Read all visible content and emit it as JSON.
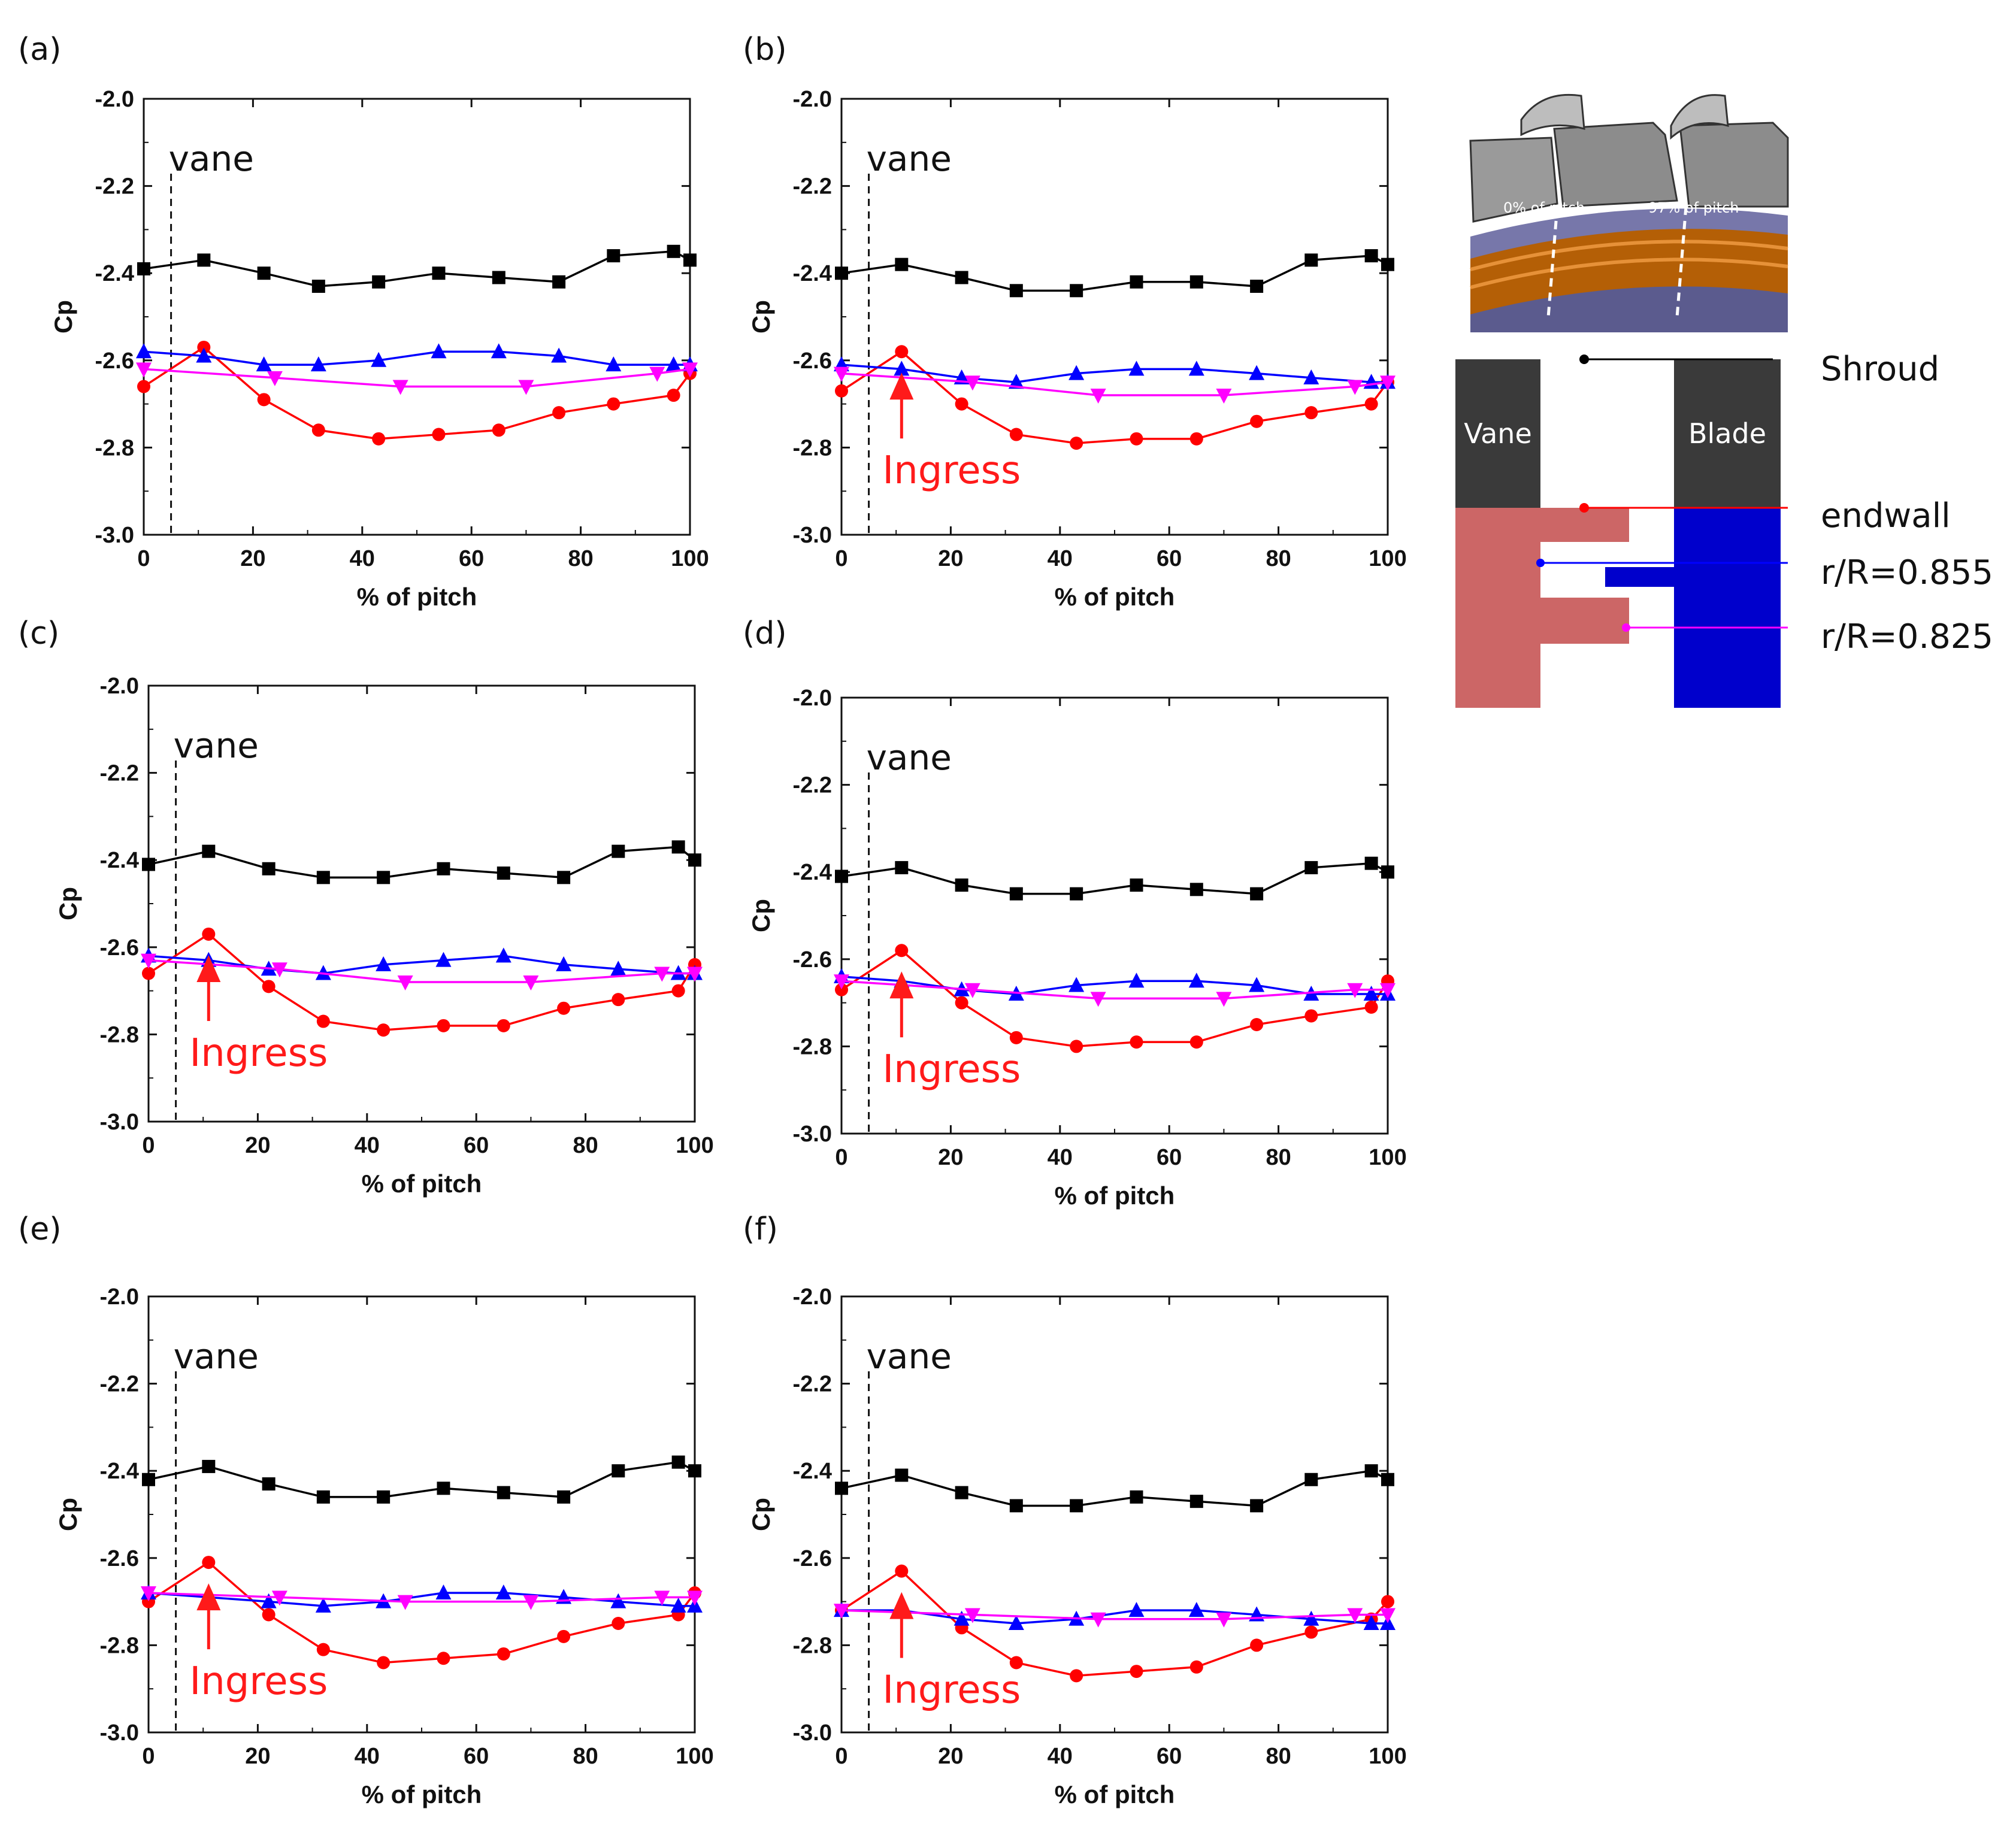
{
  "figure": {
    "schematic": {
      "render_labels": {
        "pitch0": "0% of pitch",
        "pitch97": "97% of pitch"
      },
      "labels": {
        "vane": "Vane",
        "blade": "Blade"
      },
      "probes": [
        {
          "name": "Shroud",
          "color": "#000000"
        },
        {
          "name": "endwall",
          "color": "#ff0000"
        },
        {
          "name": "r/R=0.855",
          "color": "#0000ff"
        },
        {
          "name": "r/R=0.825",
          "color": "#ff00ff"
        }
      ]
    }
  },
  "chart_data": [
    {
      "panel": "(a)",
      "type": "line",
      "xlabel": "% of pitch",
      "ylabel": "Cp",
      "xlim": [
        0,
        100
      ],
      "ylim": [
        -3.0,
        -2.0
      ],
      "xticks": [
        "0",
        "20",
        "40",
        "60",
        "80",
        "100"
      ],
      "yticks": [
        "-2.0",
        "-2.2",
        "-2.4",
        "-2.6",
        "-2.8",
        "-3.0"
      ],
      "vane_x": 5,
      "vane_label": "vane",
      "annotation": null,
      "series": [
        {
          "name": "Shroud",
          "color": "#000000",
          "marker": "square",
          "x": [
            0,
            11,
            22,
            32,
            43,
            54,
            65,
            76,
            86,
            97,
            100
          ],
          "y": [
            -2.39,
            -2.37,
            -2.4,
            -2.43,
            -2.42,
            -2.4,
            -2.41,
            -2.42,
            -2.36,
            -2.35,
            -2.37
          ]
        },
        {
          "name": "endwall",
          "color": "#ff0000",
          "marker": "circle",
          "x": [
            0,
            11,
            22,
            32,
            43,
            54,
            65,
            76,
            86,
            97,
            100
          ],
          "y": [
            -2.66,
            -2.57,
            -2.69,
            -2.76,
            -2.78,
            -2.77,
            -2.76,
            -2.72,
            -2.7,
            -2.68,
            -2.63
          ]
        },
        {
          "name": "r/R=0.855",
          "color": "#0000ff",
          "marker": "triangle-up",
          "x": [
            0,
            11,
            22,
            32,
            43,
            54,
            65,
            76,
            86,
            97,
            100
          ],
          "y": [
            -2.58,
            -2.59,
            -2.61,
            -2.61,
            -2.6,
            -2.58,
            -2.58,
            -2.59,
            -2.61,
            -2.61,
            -2.61
          ]
        },
        {
          "name": "r/R=0.825",
          "color": "#ff00ff",
          "marker": "triangle-down",
          "x": [
            0,
            24,
            47,
            70,
            94,
            100
          ],
          "y": [
            -2.62,
            -2.64,
            -2.66,
            -2.66,
            -2.63,
            -2.62
          ]
        }
      ]
    },
    {
      "panel": "(b)",
      "type": "line",
      "xlabel": "% of pitch",
      "ylabel": "Cp",
      "xlim": [
        0,
        100
      ],
      "ylim": [
        -3.0,
        -2.0
      ],
      "xticks": [
        "0",
        "20",
        "40",
        "60",
        "80",
        "100"
      ],
      "yticks": [
        "-2.0",
        "-2.2",
        "-2.4",
        "-2.6",
        "-2.8",
        "-3.0"
      ],
      "vane_x": 5,
      "vane_label": "vane",
      "annotation": {
        "text": "Ingress",
        "x": 11
      },
      "series": [
        {
          "name": "Shroud",
          "color": "#000000",
          "marker": "square",
          "x": [
            0,
            11,
            22,
            32,
            43,
            54,
            65,
            76,
            86,
            97,
            100
          ],
          "y": [
            -2.4,
            -2.38,
            -2.41,
            -2.44,
            -2.44,
            -2.42,
            -2.42,
            -2.43,
            -2.37,
            -2.36,
            -2.38
          ]
        },
        {
          "name": "endwall",
          "color": "#ff0000",
          "marker": "circle",
          "x": [
            0,
            11,
            22,
            32,
            43,
            54,
            65,
            76,
            86,
            97,
            100
          ],
          "y": [
            -2.67,
            -2.58,
            -2.7,
            -2.77,
            -2.79,
            -2.78,
            -2.78,
            -2.74,
            -2.72,
            -2.7,
            -2.65
          ]
        },
        {
          "name": "r/R=0.855",
          "color": "#0000ff",
          "marker": "triangle-up",
          "x": [
            0,
            11,
            22,
            32,
            43,
            54,
            65,
            76,
            86,
            97,
            100
          ],
          "y": [
            -2.61,
            -2.62,
            -2.64,
            -2.65,
            -2.63,
            -2.62,
            -2.62,
            -2.63,
            -2.64,
            -2.65,
            -2.65
          ]
        },
        {
          "name": "r/R=0.825",
          "color": "#ff00ff",
          "marker": "triangle-down",
          "x": [
            0,
            24,
            47,
            70,
            94,
            100
          ],
          "y": [
            -2.63,
            -2.65,
            -2.68,
            -2.68,
            -2.66,
            -2.65
          ]
        }
      ]
    },
    {
      "panel": "(c)",
      "type": "line",
      "xlabel": "% of pitch",
      "ylabel": "Cp",
      "xlim": [
        0,
        100
      ],
      "ylim": [
        -3.0,
        -2.0
      ],
      "xticks": [
        "0",
        "20",
        "40",
        "60",
        "80",
        "100"
      ],
      "yticks": [
        "-2.0",
        "-2.2",
        "-2.4",
        "-2.6",
        "-2.8",
        "-3.0"
      ],
      "vane_x": 5,
      "vane_label": "vane",
      "annotation": {
        "text": "Ingress",
        "x": 11
      },
      "series": [
        {
          "name": "Shroud",
          "color": "#000000",
          "marker": "square",
          "x": [
            0,
            11,
            22,
            32,
            43,
            54,
            65,
            76,
            86,
            97,
            100
          ],
          "y": [
            -2.41,
            -2.38,
            -2.42,
            -2.44,
            -2.44,
            -2.42,
            -2.43,
            -2.44,
            -2.38,
            -2.37,
            -2.4
          ]
        },
        {
          "name": "endwall",
          "color": "#ff0000",
          "marker": "circle",
          "x": [
            0,
            11,
            22,
            32,
            43,
            54,
            65,
            76,
            86,
            97,
            100
          ],
          "y": [
            -2.66,
            -2.57,
            -2.69,
            -2.77,
            -2.79,
            -2.78,
            -2.78,
            -2.74,
            -2.72,
            -2.7,
            -2.64
          ]
        },
        {
          "name": "r/R=0.855",
          "color": "#0000ff",
          "marker": "triangle-up",
          "x": [
            0,
            11,
            22,
            32,
            43,
            54,
            65,
            76,
            86,
            97,
            100
          ],
          "y": [
            -2.62,
            -2.63,
            -2.65,
            -2.66,
            -2.64,
            -2.63,
            -2.62,
            -2.64,
            -2.65,
            -2.66,
            -2.66
          ]
        },
        {
          "name": "r/R=0.825",
          "color": "#ff00ff",
          "marker": "triangle-down",
          "x": [
            0,
            24,
            47,
            70,
            94,
            100
          ],
          "y": [
            -2.63,
            -2.65,
            -2.68,
            -2.68,
            -2.66,
            -2.66
          ]
        }
      ]
    },
    {
      "panel": "(d)",
      "type": "line",
      "xlabel": "% of pitch",
      "ylabel": "Cp",
      "xlim": [
        0,
        100
      ],
      "ylim": [
        -3.0,
        -2.0
      ],
      "xticks": [
        "0",
        "20",
        "40",
        "60",
        "80",
        "100"
      ],
      "yticks": [
        "-2.0",
        "-2.2",
        "-2.4",
        "-2.6",
        "-2.8",
        "-3.0"
      ],
      "vane_x": 5,
      "vane_label": "vane",
      "annotation": {
        "text": "Ingress",
        "x": 11
      },
      "series": [
        {
          "name": "Shroud",
          "color": "#000000",
          "marker": "square",
          "x": [
            0,
            11,
            22,
            32,
            43,
            54,
            65,
            76,
            86,
            97,
            100
          ],
          "y": [
            -2.41,
            -2.39,
            -2.43,
            -2.45,
            -2.45,
            -2.43,
            -2.44,
            -2.45,
            -2.39,
            -2.38,
            -2.4
          ]
        },
        {
          "name": "endwall",
          "color": "#ff0000",
          "marker": "circle",
          "x": [
            0,
            11,
            22,
            32,
            43,
            54,
            65,
            76,
            86,
            97,
            100
          ],
          "y": [
            -2.67,
            -2.58,
            -2.7,
            -2.78,
            -2.8,
            -2.79,
            -2.79,
            -2.75,
            -2.73,
            -2.71,
            -2.65
          ]
        },
        {
          "name": "r/R=0.855",
          "color": "#0000ff",
          "marker": "triangle-up",
          "x": [
            0,
            11,
            22,
            32,
            43,
            54,
            65,
            76,
            86,
            97,
            100
          ],
          "y": [
            -2.64,
            -2.65,
            -2.67,
            -2.68,
            -2.66,
            -2.65,
            -2.65,
            -2.66,
            -2.68,
            -2.68,
            -2.68
          ]
        },
        {
          "name": "r/R=0.825",
          "color": "#ff00ff",
          "marker": "triangle-down",
          "x": [
            0,
            24,
            47,
            70,
            94,
            100
          ],
          "y": [
            -2.65,
            -2.67,
            -2.69,
            -2.69,
            -2.67,
            -2.67
          ]
        }
      ]
    },
    {
      "panel": "(e)",
      "type": "line",
      "xlabel": "% of pitch",
      "ylabel": "Cp",
      "xlim": [
        0,
        100
      ],
      "ylim": [
        -3.0,
        -2.0
      ],
      "xticks": [
        "0",
        "20",
        "40",
        "60",
        "80",
        "100"
      ],
      "yticks": [
        "-2.0",
        "-2.2",
        "-2.4",
        "-2.6",
        "-2.8",
        "-3.0"
      ],
      "vane_x": 5,
      "vane_label": "vane",
      "annotation": {
        "text": "Ingress",
        "x": 11
      },
      "series": [
        {
          "name": "Shroud",
          "color": "#000000",
          "marker": "square",
          "x": [
            0,
            11,
            22,
            32,
            43,
            54,
            65,
            76,
            86,
            97,
            100
          ],
          "y": [
            -2.42,
            -2.39,
            -2.43,
            -2.46,
            -2.46,
            -2.44,
            -2.45,
            -2.46,
            -2.4,
            -2.38,
            -2.4
          ]
        },
        {
          "name": "endwall",
          "color": "#ff0000",
          "marker": "circle",
          "x": [
            0,
            11,
            22,
            32,
            43,
            54,
            65,
            76,
            86,
            97,
            100
          ],
          "y": [
            -2.7,
            -2.61,
            -2.73,
            -2.81,
            -2.84,
            -2.83,
            -2.82,
            -2.78,
            -2.75,
            -2.73,
            -2.68
          ]
        },
        {
          "name": "r/R=0.855",
          "color": "#0000ff",
          "marker": "triangle-up",
          "x": [
            0,
            11,
            22,
            32,
            43,
            54,
            65,
            76,
            86,
            97,
            100
          ],
          "y": [
            -2.68,
            -2.69,
            -2.7,
            -2.71,
            -2.7,
            -2.68,
            -2.68,
            -2.69,
            -2.7,
            -2.71,
            -2.71
          ]
        },
        {
          "name": "r/R=0.825",
          "color": "#ff00ff",
          "marker": "triangle-down",
          "x": [
            0,
            24,
            47,
            70,
            94,
            100
          ],
          "y": [
            -2.68,
            -2.69,
            -2.7,
            -2.7,
            -2.69,
            -2.69
          ]
        }
      ]
    },
    {
      "panel": "(f)",
      "type": "line",
      "xlabel": "% of pitch",
      "ylabel": "Cp",
      "xlim": [
        0,
        100
      ],
      "ylim": [
        -3.0,
        -2.0
      ],
      "xticks": [
        "0",
        "20",
        "40",
        "60",
        "80",
        "100"
      ],
      "yticks": [
        "-2.0",
        "-2.2",
        "-2.4",
        "-2.6",
        "-2.8",
        "-3.0"
      ],
      "vane_x": 5,
      "vane_label": "vane",
      "annotation": {
        "text": "Ingress",
        "x": 11
      },
      "series": [
        {
          "name": "Shroud",
          "color": "#000000",
          "marker": "square",
          "x": [
            0,
            11,
            22,
            32,
            43,
            54,
            65,
            76,
            86,
            97,
            100
          ],
          "y": [
            -2.44,
            -2.41,
            -2.45,
            -2.48,
            -2.48,
            -2.46,
            -2.47,
            -2.48,
            -2.42,
            -2.4,
            -2.42
          ]
        },
        {
          "name": "endwall",
          "color": "#ff0000",
          "marker": "circle",
          "x": [
            0,
            11,
            22,
            32,
            43,
            54,
            65,
            76,
            86,
            97,
            100
          ],
          "y": [
            -2.72,
            -2.63,
            -2.76,
            -2.84,
            -2.87,
            -2.86,
            -2.85,
            -2.8,
            -2.77,
            -2.74,
            -2.7
          ]
        },
        {
          "name": "r/R=0.855",
          "color": "#0000ff",
          "marker": "triangle-up",
          "x": [
            0,
            11,
            22,
            32,
            43,
            54,
            65,
            76,
            86,
            97,
            100
          ],
          "y": [
            -2.72,
            -2.72,
            -2.74,
            -2.75,
            -2.74,
            -2.72,
            -2.72,
            -2.73,
            -2.74,
            -2.75,
            -2.75
          ]
        },
        {
          "name": "r/R=0.825",
          "color": "#ff00ff",
          "marker": "triangle-down",
          "x": [
            0,
            24,
            47,
            70,
            94,
            100
          ],
          "y": [
            -2.72,
            -2.73,
            -2.74,
            -2.74,
            -2.73,
            -2.73
          ]
        }
      ]
    }
  ]
}
